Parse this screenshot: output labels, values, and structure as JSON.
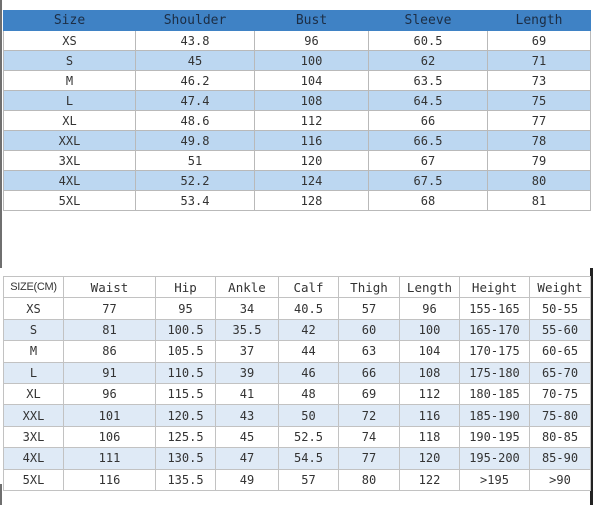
{
  "table1": {
    "headers": [
      "Size",
      "Shoulder",
      "Bust",
      "Sleeve",
      "Length"
    ],
    "rows": [
      [
        "XS",
        "43.8",
        "96",
        "60.5",
        "69"
      ],
      [
        "S",
        "45",
        "100",
        "62",
        "71"
      ],
      [
        "M",
        "46.2",
        "104",
        "63.5",
        "73"
      ],
      [
        "L",
        "47.4",
        "108",
        "64.5",
        "75"
      ],
      [
        "XL",
        "48.6",
        "112",
        "66",
        "77"
      ],
      [
        "XXL",
        "49.8",
        "116",
        "66.5",
        "78"
      ],
      [
        "3XL",
        "51",
        "120",
        "67",
        "79"
      ],
      [
        "4XL",
        "52.2",
        "124",
        "67.5",
        "80"
      ],
      [
        "5XL",
        "53.4",
        "128",
        "68",
        "81"
      ]
    ]
  },
  "table2": {
    "headers": [
      "SIZE(CM)",
      "Waist",
      "Hip",
      "Ankle",
      "Calf",
      "Thigh",
      "Length",
      "Height",
      "Weight"
    ],
    "rows": [
      [
        "XS",
        "77",
        "95",
        "34",
        "40.5",
        "57",
        "96",
        "155-165",
        "50-55"
      ],
      [
        "S",
        "81",
        "100.5",
        "35.5",
        "42",
        "60",
        "100",
        "165-170",
        "55-60"
      ],
      [
        "M",
        "86",
        "105.5",
        "37",
        "44",
        "63",
        "104",
        "170-175",
        "60-65"
      ],
      [
        "L",
        "91",
        "110.5",
        "39",
        "46",
        "66",
        "108",
        "175-180",
        "65-70"
      ],
      [
        "XL",
        "96",
        "115.5",
        "41",
        "48",
        "69",
        "112",
        "180-185",
        "70-75"
      ],
      [
        "XXL",
        "101",
        "120.5",
        "43",
        "50",
        "72",
        "116",
        "185-190",
        "75-80"
      ],
      [
        "3XL",
        "106",
        "125.5",
        "45",
        "52.5",
        "74",
        "118",
        "190-195",
        "80-85"
      ],
      [
        "4XL",
        "111",
        "130.5",
        "47",
        "54.5",
        "77",
        "120",
        "195-200",
        "85-90"
      ],
      [
        "5XL",
        "116",
        "135.5",
        "49",
        "57",
        "80",
        "122",
        ">195",
        ">90"
      ]
    ]
  },
  "colors": {
    "header_blue": "#3f82c5",
    "row_band_blue": "#bcd7f1",
    "row_band_light": "#dfeaf6"
  }
}
